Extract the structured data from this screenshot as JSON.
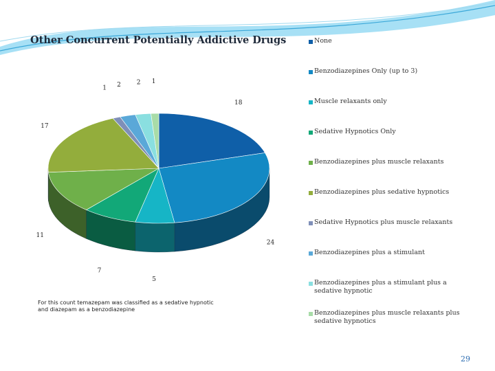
{
  "slide": {
    "title": "Other Concurrent Potentially Addictive Drugs",
    "footnote": "For this count temazepam was classified as a sedative hypnotic and diazepam as a benzodiazepine",
    "page_number": "29"
  },
  "chart_data": {
    "type": "pie",
    "style": "3d",
    "legend_position": "right",
    "slices": [
      {
        "label": "None",
        "value": 18,
        "color": "#0f5fa8"
      },
      {
        "label": "Benzodiazepines Only (up to 3)",
        "value": 24,
        "color": "#1389c4"
      },
      {
        "label": "Muscle relaxants only",
        "value": 5,
        "color": "#16b5c6"
      },
      {
        "label": "Sedative Hypnotics Only",
        "value": 7,
        "color": "#12a878"
      },
      {
        "label": "Benzodiazepines plus muscle relaxants",
        "value": 11,
        "color": "#6fb04a"
      },
      {
        "label": "Benzodiazepines plus sedative hypnotics",
        "value": 17,
        "color": "#93ad3c"
      },
      {
        "label": "Sedative Hypnotics plus muscle relaxants",
        "value": 1,
        "color": "#7f8fb8"
      },
      {
        "label": "Benzodiazepines plus a stimulant",
        "value": 2,
        "color": "#5aa8d8"
      },
      {
        "label": "Benzodiazepines plus a stimulant plus a sedative hypnotic",
        "value": 2,
        "color": "#8adfe0"
      },
      {
        "label": "Benzodiazepines plus muscle relaxants plus sedative hypnotics",
        "value": 1,
        "color": "#a8dca8"
      }
    ]
  }
}
